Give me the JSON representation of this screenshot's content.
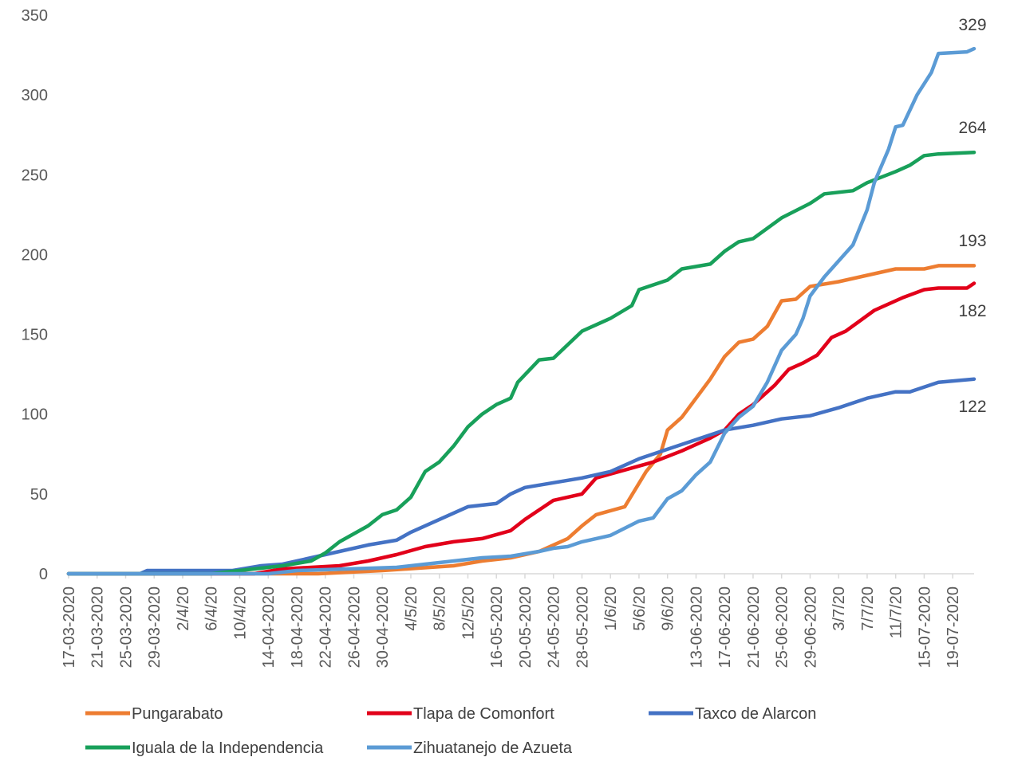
{
  "chart_data": {
    "type": "line",
    "title": "",
    "xlabel": "",
    "ylabel": "",
    "ylim": [
      0,
      350
    ],
    "y_ticks": [
      0,
      50,
      100,
      150,
      200,
      250,
      300,
      350
    ],
    "grid": false,
    "legend_position": "bottom",
    "x_start": "17-03-2020",
    "x_end": "22-07-2020",
    "x_tick_labels": [
      "17-03-2020",
      "21-03-2020",
      "25-03-2020",
      "29-03-2020",
      "2/4/20",
      "6/4/20",
      "10/4/20",
      "14-04-2020",
      "18-04-2020",
      "22-04-2020",
      "26-04-2020",
      "30-04-2020",
      "4/5/20",
      "8/5/20",
      "12/5/20",
      "16-05-2020",
      "20-05-2020",
      "24-05-2020",
      "28-05-2020",
      "1/6/20",
      "5/6/20",
      "9/6/20",
      "13-06-2020",
      "17-06-2020",
      "21-06-2020",
      "25-06-2020",
      "29-06-2020",
      "3/7/20",
      "7/7/20",
      "11/7/20",
      "15-07-2020",
      "19-07-2020"
    ],
    "end_labels": [
      "329",
      "264",
      "193",
      "182",
      "122"
    ],
    "series": [
      {
        "name": "Pungarabato",
        "color": "#ED7D31",
        "end_label": "193",
        "points": [
          [
            "17-03-2020",
            0
          ],
          [
            "21-04-2020",
            0
          ],
          [
            "30-04-2020",
            2
          ],
          [
            "10-05-2020",
            5
          ],
          [
            "14-05-2020",
            8
          ],
          [
            "18-05-2020",
            10
          ],
          [
            "22-05-2020",
            14
          ],
          [
            "26-05-2020",
            22
          ],
          [
            "28-05-2020",
            30
          ],
          [
            "30-05-2020",
            37
          ],
          [
            "03-06-2020",
            42
          ],
          [
            "06-06-2020",
            64
          ],
          [
            "08-06-2020",
            75
          ],
          [
            "09-06-2020",
            90
          ],
          [
            "11-06-2020",
            98
          ],
          [
            "13-06-2020",
            110
          ],
          [
            "15-06-2020",
            122
          ],
          [
            "17-06-2020",
            136
          ],
          [
            "19-06-2020",
            145
          ],
          [
            "21-06-2020",
            147
          ],
          [
            "23-06-2020",
            155
          ],
          [
            "25-06-2020",
            171
          ],
          [
            "27-06-2020",
            172
          ],
          [
            "29-06-2020",
            180
          ],
          [
            "03-07-2020",
            183
          ],
          [
            "07-07-2020",
            187
          ],
          [
            "11-07-2020",
            191
          ],
          [
            "15-07-2020",
            191
          ],
          [
            "17-07-2020",
            193
          ],
          [
            "22-07-2020",
            193
          ]
        ]
      },
      {
        "name": "Tlapa de Comonfort",
        "color": "#E2001A",
        "end_label": "182",
        "points": [
          [
            "17-03-2020",
            0
          ],
          [
            "12-04-2020",
            0
          ],
          [
            "16-04-2020",
            3
          ],
          [
            "24-04-2020",
            5
          ],
          [
            "28-04-2020",
            8
          ],
          [
            "02-05-2020",
            12
          ],
          [
            "06-05-2020",
            17
          ],
          [
            "10-05-2020",
            20
          ],
          [
            "14-05-2020",
            22
          ],
          [
            "18-05-2020",
            27
          ],
          [
            "20-05-2020",
            34
          ],
          [
            "24-05-2020",
            46
          ],
          [
            "28-05-2020",
            50
          ],
          [
            "30-05-2020",
            60
          ],
          [
            "03-06-2020",
            65
          ],
          [
            "07-06-2020",
            70
          ],
          [
            "11-06-2020",
            77
          ],
          [
            "15-06-2020",
            85
          ],
          [
            "17-06-2020",
            90
          ],
          [
            "19-06-2020",
            100
          ],
          [
            "21-06-2020",
            106
          ],
          [
            "24-06-2020",
            118
          ],
          [
            "26-06-2020",
            128
          ],
          [
            "28-06-2020",
            132
          ],
          [
            "30-06-2020",
            137
          ],
          [
            "02-07-2020",
            148
          ],
          [
            "04-07-2020",
            152
          ],
          [
            "08-07-2020",
            165
          ],
          [
            "12-07-2020",
            173
          ],
          [
            "15-07-2020",
            178
          ],
          [
            "17-07-2020",
            179
          ],
          [
            "21-07-2020",
            179
          ],
          [
            "22-07-2020",
            182
          ]
        ]
      },
      {
        "name": "Taxco de Alarcon",
        "color": "#4472C4",
        "end_label": "122",
        "points": [
          [
            "17-03-2020",
            0
          ],
          [
            "27-03-2020",
            0
          ],
          [
            "28-03-2020",
            2
          ],
          [
            "09-04-2020",
            2
          ],
          [
            "13-04-2020",
            5
          ],
          [
            "16-04-2020",
            6
          ],
          [
            "20-04-2020",
            10
          ],
          [
            "24-04-2020",
            14
          ],
          [
            "28-04-2020",
            18
          ],
          [
            "02-05-2020",
            21
          ],
          [
            "04-05-2020",
            26
          ],
          [
            "08-05-2020",
            34
          ],
          [
            "12-05-2020",
            42
          ],
          [
            "16-05-2020",
            44
          ],
          [
            "18-05-2020",
            50
          ],
          [
            "20-05-2020",
            54
          ],
          [
            "24-05-2020",
            57
          ],
          [
            "28-05-2020",
            60
          ],
          [
            "01-06-2020",
            64
          ],
          [
            "05-06-2020",
            72
          ],
          [
            "09-06-2020",
            78
          ],
          [
            "13-06-2020",
            84
          ],
          [
            "17-06-2020",
            90
          ],
          [
            "21-06-2020",
            93
          ],
          [
            "25-06-2020",
            97
          ],
          [
            "29-06-2020",
            99
          ],
          [
            "03-07-2020",
            104
          ],
          [
            "07-07-2020",
            110
          ],
          [
            "11-07-2020",
            114
          ],
          [
            "13-07-2020",
            114
          ],
          [
            "17-07-2020",
            120
          ],
          [
            "22-07-2020",
            122
          ]
        ]
      },
      {
        "name": "Iguala de la Independencia",
        "color": "#18A05A",
        "end_label": "264",
        "points": [
          [
            "17-03-2020",
            0
          ],
          [
            "06-04-2020",
            0
          ],
          [
            "10-04-2020",
            2
          ],
          [
            "16-04-2020",
            5
          ],
          [
            "20-04-2020",
            8
          ],
          [
            "22-04-2020",
            13
          ],
          [
            "24-04-2020",
            20
          ],
          [
            "28-04-2020",
            30
          ],
          [
            "30-04-2020",
            37
          ],
          [
            "02-05-2020",
            40
          ],
          [
            "04-05-2020",
            48
          ],
          [
            "06-05-2020",
            64
          ],
          [
            "08-05-2020",
            70
          ],
          [
            "10-05-2020",
            80
          ],
          [
            "12-05-2020",
            92
          ],
          [
            "14-05-2020",
            100
          ],
          [
            "16-05-2020",
            106
          ],
          [
            "18-05-2020",
            110
          ],
          [
            "19-05-2020",
            120
          ],
          [
            "22-05-2020",
            134
          ],
          [
            "24-05-2020",
            135
          ],
          [
            "28-05-2020",
            152
          ],
          [
            "01-06-2020",
            160
          ],
          [
            "04-06-2020",
            168
          ],
          [
            "05-06-2020",
            178
          ],
          [
            "09-06-2020",
            184
          ],
          [
            "11-06-2020",
            191
          ],
          [
            "15-06-2020",
            194
          ],
          [
            "17-06-2020",
            202
          ],
          [
            "19-06-2020",
            208
          ],
          [
            "21-06-2020",
            210
          ],
          [
            "25-06-2020",
            223
          ],
          [
            "29-06-2020",
            232
          ],
          [
            "01-07-2020",
            238
          ],
          [
            "05-07-2020",
            240
          ],
          [
            "07-07-2020",
            245
          ],
          [
            "11-07-2020",
            252
          ],
          [
            "13-07-2020",
            256
          ],
          [
            "15-07-2020",
            262
          ],
          [
            "17-07-2020",
            263
          ],
          [
            "22-07-2020",
            264
          ]
        ]
      },
      {
        "name": "Zihuatanejo de Azueta",
        "color": "#5B9BD5",
        "end_label": "329",
        "points": [
          [
            "17-03-2020",
            0
          ],
          [
            "14-04-2020",
            0
          ],
          [
            "18-04-2020",
            2
          ],
          [
            "02-05-2020",
            4
          ],
          [
            "06-05-2020",
            6
          ],
          [
            "14-05-2020",
            10
          ],
          [
            "18-05-2020",
            11
          ],
          [
            "22-05-2020",
            14
          ],
          [
            "24-05-2020",
            16
          ],
          [
            "26-05-2020",
            17
          ],
          [
            "28-05-2020",
            20
          ],
          [
            "01-06-2020",
            24
          ],
          [
            "05-06-2020",
            33
          ],
          [
            "07-06-2020",
            35
          ],
          [
            "09-06-2020",
            47
          ],
          [
            "11-06-2020",
            52
          ],
          [
            "13-06-2020",
            62
          ],
          [
            "15-06-2020",
            70
          ],
          [
            "17-06-2020",
            88
          ],
          [
            "19-06-2020",
            98
          ],
          [
            "21-06-2020",
            105
          ],
          [
            "23-06-2020",
            120
          ],
          [
            "25-06-2020",
            140
          ],
          [
            "27-06-2020",
            150
          ],
          [
            "28-06-2020",
            160
          ],
          [
            "29-06-2020",
            174
          ],
          [
            "01-07-2020",
            186
          ],
          [
            "05-07-2020",
            206
          ],
          [
            "07-07-2020",
            228
          ],
          [
            "08-07-2020",
            245
          ],
          [
            "10-07-2020",
            266
          ],
          [
            "11-07-2020",
            280
          ],
          [
            "12-07-2020",
            281
          ],
          [
            "14-07-2020",
            300
          ],
          [
            "16-07-2020",
            314
          ],
          [
            "17-07-2020",
            326
          ],
          [
            "21-07-2020",
            327
          ],
          [
            "22-07-2020",
            329
          ]
        ]
      }
    ]
  }
}
